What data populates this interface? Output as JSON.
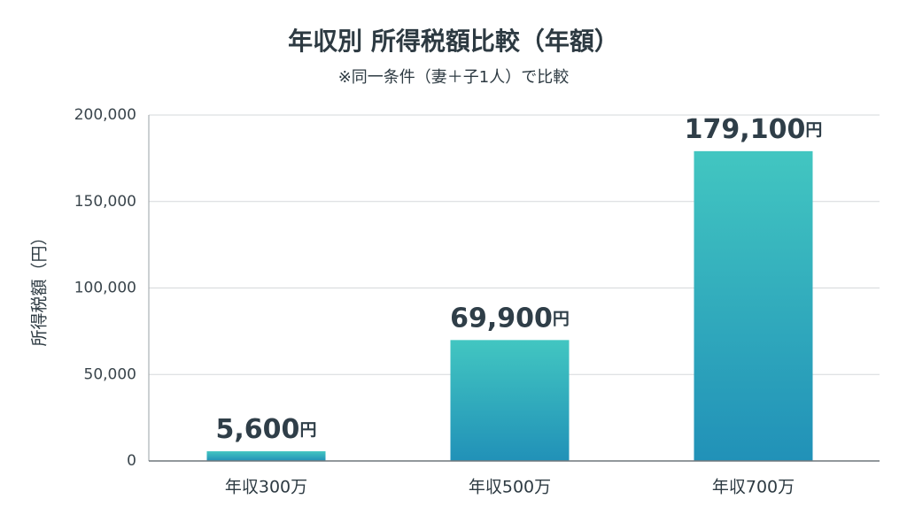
{
  "chart_data": {
    "type": "bar",
    "title": "年収別 所得税額比較（年額）",
    "subtitle": "※同一条件（妻＋子1人）で比較",
    "y_label": "所得税額（円）",
    "categories": [
      "年収300万",
      "年収500万",
      "年収700万"
    ],
    "values": [
      5600,
      69900,
      179100
    ],
    "value_labels": [
      "5,600円",
      "69,900円",
      "179,100円"
    ],
    "color_top": "#42c6c1",
    "color_bottom": "#2191b8",
    "ylim": [
      0,
      200000
    ],
    "yticks": [
      0,
      {
        "value": 50000,
        "label": "50,000"
      },
      {
        "value": 100000,
        "label": "100,000"
      },
      {
        "value": 150000,
        "label": "150,000"
      },
      {
        "value": 200000,
        "label": "200,000"
      }
    ],
    "grid": true
  }
}
